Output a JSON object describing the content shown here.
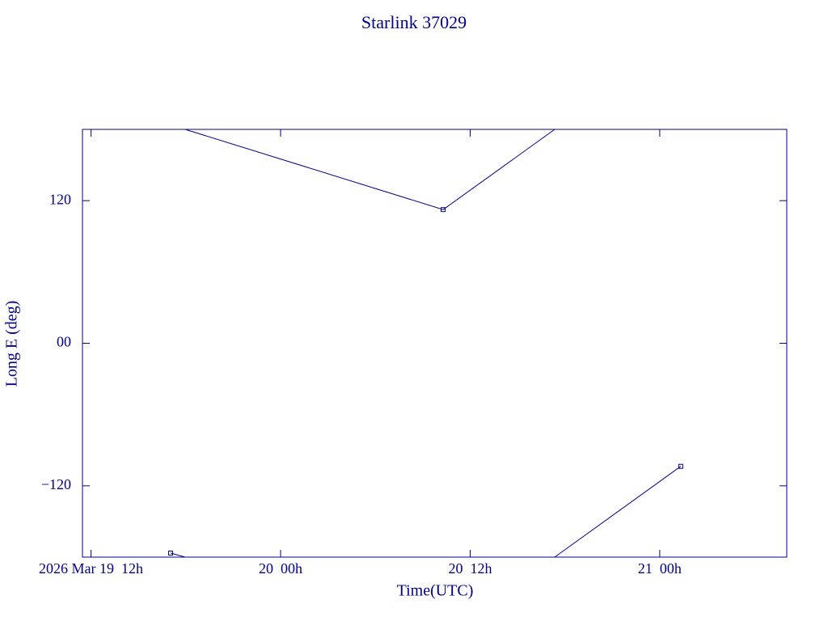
{
  "chart_data": {
    "type": "line",
    "title": "Starlink 37029",
    "x_label": "Time(UTC)",
    "y_label": "Long E (deg)",
    "color": "#00008b",
    "xlim": [
      11.46,
      56.04
    ],
    "ylim": [
      -180,
      180
    ],
    "xticks": [
      {
        "value": 12,
        "label": "2026 Mar 19  12h"
      },
      {
        "value": 24,
        "label": "20  00h"
      },
      {
        "value": 36,
        "label": "20  12h"
      },
      {
        "value": 48,
        "label": "21  00h"
      }
    ],
    "yticks": [
      {
        "value": 120,
        "label": "120"
      },
      {
        "value": 0,
        "label": "00"
      },
      {
        "value": -120,
        "label": "−120"
      }
    ],
    "series": [
      {
        "x": [
          17.04,
          17.96,
          17.96,
          17.96,
          34.29,
          41.35,
          41.35,
          41.35,
          49.33
        ],
        "values": [
          -176.6,
          -180,
          null,
          180,
          112.5,
          180,
          null,
          -180,
          -103.6
        ]
      },
      {
        "type": "scatter",
        "x": [
          17.04,
          34.29,
          49.33
        ],
        "values": [
          -176.6,
          112.5,
          -103.6
        ]
      }
    ]
  }
}
